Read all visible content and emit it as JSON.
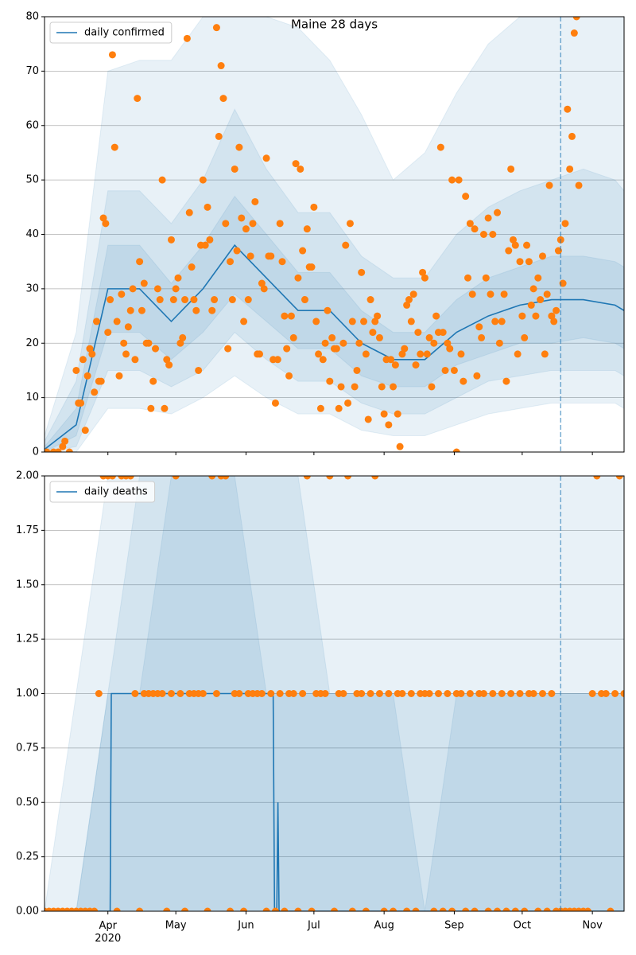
{
  "chart_data": [
    {
      "type": "line",
      "title": "Maine 28 days",
      "legend": "upper left",
      "grid": "y",
      "xlim": [
        64,
        320
      ],
      "ylim": [
        0,
        80
      ],
      "yticks": [
        0,
        10,
        20,
        30,
        40,
        50,
        60,
        70,
        80
      ],
      "vline": 292,
      "series": [
        {
          "name": "daily confirmed",
          "color": "#1f77b4",
          "x": [
            64,
            78,
            92,
            106,
            120,
            134,
            148,
            162,
            176,
            190,
            204,
            218,
            232,
            246,
            260,
            274,
            288,
            302,
            316,
            320
          ],
          "values": [
            0.5,
            5,
            30,
            30,
            24,
            30,
            38,
            32,
            26,
            26,
            20,
            17,
            17,
            22,
            25,
            27,
            28,
            28,
            27,
            26
          ]
        }
      ],
      "band_x": [
        64,
        78,
        92,
        106,
        120,
        134,
        148,
        162,
        176,
        190,
        204,
        218,
        232,
        246,
        260,
        274,
        288,
        302,
        316,
        320
      ],
      "bands": [
        {
          "color": "#1f77b4",
          "opacity": 0.1,
          "lower": [
            0,
            0,
            8,
            8,
            7,
            10,
            14,
            10,
            7,
            7,
            4,
            3,
            3,
            5,
            7,
            8,
            9,
            9,
            9,
            8
          ],
          "upper": [
            3,
            22,
            70,
            72,
            72,
            80,
            80,
            80,
            78,
            72,
            62,
            50,
            55,
            66,
            75,
            80,
            80,
            80,
            80,
            80
          ]
        },
        {
          "color": "#1f77b4",
          "opacity": 0.1,
          "lower": [
            0,
            1,
            15,
            15,
            12,
            15,
            22,
            17,
            13,
            13,
            9,
            7,
            7,
            10,
            13,
            14,
            15,
            15,
            15,
            14
          ],
          "upper": [
            2,
            13,
            48,
            48,
            42,
            50,
            63,
            52,
            44,
            44,
            36,
            32,
            32,
            40,
            45,
            48,
            50,
            52,
            50,
            48
          ]
        },
        {
          "color": "#1f77b4",
          "opacity": 0.1,
          "lower": [
            0,
            3,
            22,
            22,
            17,
            22,
            29,
            24,
            19,
            19,
            14,
            12,
            12,
            16,
            18,
            20,
            20,
            21,
            20,
            19
          ],
          "upper": [
            1,
            8,
            38,
            38,
            31,
            38,
            47,
            40,
            33,
            33,
            26,
            22,
            22,
            28,
            32,
            34,
            36,
            36,
            35,
            34
          ]
        }
      ],
      "scatter": {
        "color": "#ff7f0e",
        "x": [
          65,
          68,
          70,
          72,
          73,
          75,
          78,
          79,
          80,
          81,
          82,
          83,
          84,
          85,
          86,
          87,
          88,
          89,
          90,
          91,
          92,
          93,
          94,
          95,
          96,
          97,
          98,
          99,
          100,
          101,
          102,
          103,
          104,
          105,
          106,
          107,
          108,
          109,
          110,
          111,
          112,
          113,
          114,
          115,
          116,
          117,
          118,
          119,
          120,
          121,
          122,
          123,
          124,
          125,
          126,
          127,
          128,
          129,
          130,
          131,
          132,
          133,
          134,
          135,
          136,
          137,
          138,
          139,
          140,
          141,
          142,
          143,
          144,
          145,
          146,
          147,
          148,
          149,
          150,
          151,
          152,
          153,
          154,
          155,
          156,
          157,
          158,
          159,
          160,
          161,
          162,
          163,
          164,
          165,
          166,
          167,
          168,
          169,
          170,
          171,
          172,
          173,
          174,
          175,
          176,
          177,
          178,
          179,
          180,
          181,
          182,
          183,
          184,
          185,
          186,
          187,
          188,
          189,
          190,
          191,
          192,
          193,
          194,
          195,
          196,
          197,
          198,
          199,
          200,
          201,
          202,
          203,
          204,
          205,
          206,
          207,
          208,
          209,
          210,
          211,
          212,
          213,
          214,
          215,
          216,
          217,
          218,
          219,
          220,
          221,
          222,
          223,
          224,
          225,
          226,
          227,
          228,
          229,
          230,
          231,
          232,
          233,
          234,
          235,
          236,
          237,
          238,
          239,
          240,
          241,
          242,
          243,
          244,
          245,
          246,
          247,
          248,
          249,
          250,
          251,
          252,
          253,
          254,
          255,
          256,
          257,
          258,
          259,
          260,
          261,
          262,
          263,
          264,
          265,
          266,
          267,
          268,
          269,
          270,
          271,
          272,
          273,
          274,
          275,
          276,
          277,
          278,
          279,
          280,
          281,
          282,
          283,
          284,
          285,
          286,
          287,
          288,
          289,
          290,
          291,
          292,
          293,
          294,
          295,
          296,
          297,
          298,
          299,
          300
        ],
        "values": [
          0,
          0,
          0,
          1,
          2,
          0,
          15,
          9,
          9,
          17,
          4,
          14,
          19,
          18,
          11,
          24,
          13,
          13,
          43,
          42,
          22,
          28,
          73,
          56,
          24,
          14,
          29,
          20,
          18,
          23,
          26,
          30,
          17,
          65,
          35,
          26,
          31,
          20,
          20,
          8,
          13,
          19,
          30,
          28,
          50,
          8,
          17,
          16,
          39,
          28,
          30,
          32,
          20,
          21,
          28,
          76,
          44,
          34,
          28,
          26,
          15,
          38,
          50,
          38,
          45,
          39,
          26,
          28,
          78,
          58,
          71,
          65,
          42,
          19,
          35,
          28,
          52,
          37,
          56,
          43,
          24,
          41,
          28,
          36,
          42,
          46,
          18,
          18,
          31,
          30,
          54,
          36,
          36,
          17,
          9,
          17,
          42,
          35,
          25,
          19,
          14,
          25,
          21,
          53,
          32,
          52,
          37,
          28,
          41,
          34,
          34,
          45,
          24,
          18,
          8,
          17,
          20,
          26,
          13,
          21,
          19,
          19,
          8,
          12,
          20,
          38,
          9,
          42,
          24,
          12,
          15,
          20,
          33,
          24,
          18,
          6,
          28,
          22,
          24,
          25,
          21,
          12,
          7,
          17,
          5,
          17,
          12,
          16,
          7,
          1,
          18,
          19,
          27,
          28,
          24,
          29,
          16,
          22,
          18,
          33,
          32,
          18,
          21,
          12,
          20,
          25,
          22,
          56,
          22,
          15,
          20,
          19,
          50,
          15,
          0,
          50,
          18,
          13,
          47,
          32,
          42,
          29,
          41,
          14,
          23,
          21,
          40,
          32,
          43,
          29,
          40,
          24,
          44,
          20,
          24,
          29,
          13,
          37,
          52,
          39,
          38,
          18,
          35,
          25,
          21,
          38,
          35,
          27,
          30,
          25,
          32,
          28,
          36,
          18,
          29,
          49,
          25,
          24,
          26,
          37,
          39,
          31,
          42,
          63,
          52,
          58,
          77,
          80,
          49
        ]
      }
    },
    {
      "type": "line",
      "legend": "upper left",
      "grid": "y",
      "xlim": [
        64,
        320
      ],
      "ylim": [
        0,
        2
      ],
      "vline": 292,
      "xticks": [
        {
          "value": 92,
          "label": "Apr\n2020"
        },
        {
          "value": 122,
          "label": "May"
        },
        {
          "value": 153,
          "label": "Jun"
        },
        {
          "value": 183,
          "label": "Jul"
        },
        {
          "value": 214,
          "label": "Aug"
        },
        {
          "value": 245,
          "label": "Sep"
        },
        {
          "value": 275,
          "label": "Oct"
        },
        {
          "value": 306,
          "label": "Nov"
        }
      ],
      "yticks": [
        {
          "value": 0,
          "label": "0.00"
        },
        {
          "value": 0.25,
          "label": "0.25"
        },
        {
          "value": 0.5,
          "label": "0.50"
        },
        {
          "value": 0.75,
          "label": "0.75"
        },
        {
          "value": 1,
          "label": "1.00"
        },
        {
          "value": 1.25,
          "label": "1.25"
        },
        {
          "value": 1.5,
          "label": "1.50"
        },
        {
          "value": 1.75,
          "label": "1.75"
        },
        {
          "value": 2,
          "label": "2.00"
        }
      ],
      "series": [
        {
          "name": "daily deaths",
          "color": "#1f77b4",
          "x": [
            64,
            93,
            93.5,
            165,
            165.6,
            166.6,
            167.1,
            167.6,
            320
          ],
          "values": [
            0,
            0,
            1,
            1,
            0,
            0,
            0.5,
            0,
            0
          ]
        }
      ],
      "band_x": [
        64,
        78,
        92,
        106,
        120,
        134,
        148,
        162,
        176,
        190,
        204,
        218,
        232,
        246,
        260,
        274,
        288,
        302,
        316,
        320
      ],
      "bands": [
        {
          "color": "#1f77b4",
          "opacity": 0.1,
          "lower": [
            0,
            0,
            0,
            0,
            0,
            0,
            0,
            0,
            0,
            0,
            0,
            0,
            0,
            0,
            0,
            0,
            0,
            0,
            0,
            0
          ],
          "upper": [
            0,
            1,
            2,
            2,
            2,
            2,
            2,
            2,
            2,
            2,
            2,
            2,
            2,
            2,
            2,
            2,
            2,
            2,
            2,
            2
          ]
        },
        {
          "color": "#1f77b4",
          "opacity": 0.1,
          "lower": [
            0,
            0,
            0,
            0,
            0,
            0,
            0,
            0,
            0,
            0,
            0,
            0,
            0,
            0,
            0,
            0,
            0,
            0,
            0,
            0
          ],
          "upper": [
            0,
            0,
            1,
            2,
            2,
            2,
            2,
            2,
            2,
            1,
            1,
            1,
            1,
            1,
            1,
            1,
            1,
            1,
            1,
            1
          ]
        },
        {
          "color": "#1f77b4",
          "opacity": 0.1,
          "lower": [
            0,
            0,
            0,
            0,
            0,
            0,
            0,
            0,
            0,
            0,
            0,
            0,
            0,
            0,
            0,
            0,
            0,
            0,
            0,
            0
          ],
          "upper": [
            0,
            0,
            1,
            1,
            2,
            2,
            2,
            1,
            1,
            1,
            1,
            1,
            0,
            1,
            1,
            1,
            1,
            1,
            1,
            1
          ]
        }
      ],
      "scatter": {
        "color": "#ff7f0e",
        "x": [
          64,
          66,
          68,
          70,
          72,
          74,
          76,
          78,
          80,
          82,
          84,
          86,
          88,
          90,
          92,
          94,
          96,
          98,
          100,
          102,
          104,
          106,
          108,
          110,
          112,
          114,
          116,
          118,
          120,
          122,
          124,
          126,
          128,
          130,
          132,
          134,
          136,
          138,
          140,
          142,
          144,
          146,
          148,
          150,
          152,
          154,
          156,
          158,
          160,
          162,
          164,
          166,
          168,
          170,
          172,
          174,
          176,
          178,
          180,
          182,
          184,
          186,
          188,
          190,
          192,
          194,
          196,
          198,
          200,
          202,
          204,
          206,
          208,
          210,
          212,
          214,
          216,
          218,
          220,
          222,
          224,
          226,
          228,
          230,
          232,
          234,
          236,
          238,
          240,
          242,
          244,
          246,
          248,
          250,
          252,
          254,
          256,
          258,
          260,
          262,
          264,
          266,
          268,
          270,
          272,
          274,
          276,
          278,
          280,
          282,
          284,
          286,
          288,
          290,
          292,
          294,
          296,
          298,
          300,
          302,
          304,
          306,
          308,
          310,
          312,
          314,
          316,
          318,
          320
        ],
        "values": [
          0,
          0,
          0,
          0,
          0,
          0,
          0,
          0,
          0,
          0,
          0,
          0,
          1,
          2,
          2,
          2,
          0,
          2,
          2,
          2,
          1,
          0,
          1,
          1,
          1,
          1,
          1,
          0,
          1,
          2,
          1,
          0,
          1,
          1,
          1,
          1,
          0,
          2,
          1,
          2,
          2,
          0,
          1,
          1,
          0,
          1,
          1,
          1,
          1,
          0,
          1,
          0,
          1,
          0,
          1,
          1,
          0,
          1,
          2,
          0,
          1,
          1,
          1,
          2,
          0,
          1,
          1,
          2,
          0,
          1,
          1,
          0,
          1,
          2,
          1,
          0,
          1,
          0,
          1,
          1,
          0,
          1,
          0,
          1,
          1,
          1,
          0,
          1,
          0,
          1,
          0,
          1,
          1,
          0,
          1,
          0,
          1,
          1,
          0,
          1,
          0,
          1,
          0,
          1,
          0,
          1,
          0,
          1,
          1,
          0,
          1,
          0,
          1,
          0,
          0,
          0,
          0,
          0,
          0,
          0,
          0,
          1,
          2,
          1,
          1,
          0,
          1,
          2,
          1
        ]
      }
    }
  ]
}
